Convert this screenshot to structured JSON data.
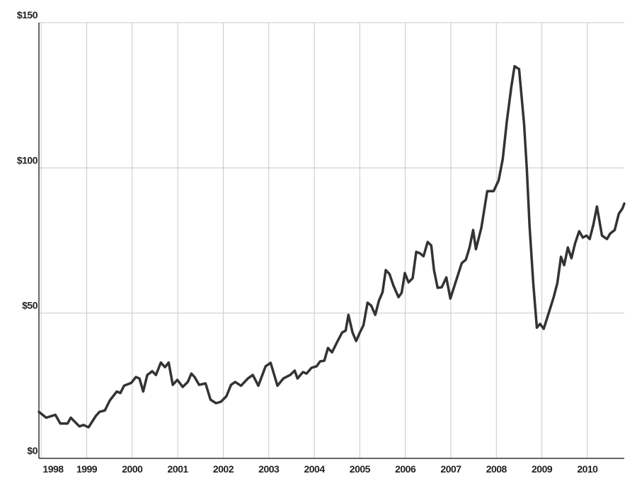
{
  "chart_data": {
    "type": "line",
    "color": "#333333",
    "grid": true,
    "x": [
      1997.95,
      1998.11,
      1998.31,
      1998.42,
      1998.58,
      1998.65,
      1998.84,
      1998.93,
      1999.04,
      1999.2,
      1999.28,
      1999.4,
      1999.51,
      1999.66,
      1999.74,
      1999.82,
      1999.98,
      2000.08,
      2000.16,
      2000.24,
      2000.33,
      2000.44,
      2000.52,
      2000.63,
      2000.72,
      2000.8,
      2000.89,
      2000.99,
      2001.11,
      2001.22,
      2001.3,
      2001.37,
      2001.47,
      2001.61,
      2001.72,
      2001.84,
      2001.95,
      2002.07,
      2002.17,
      2002.26,
      2002.39,
      2002.54,
      2002.65,
      2002.77,
      2002.93,
      2003.04,
      2003.19,
      2003.32,
      2003.47,
      2003.57,
      2003.63,
      2003.75,
      2003.83,
      2003.94,
      2004.05,
      2004.13,
      2004.22,
      2004.3,
      2004.39,
      2004.49,
      2004.61,
      2004.69,
      2004.75,
      2004.84,
      2004.92,
      2005.0,
      2005.08,
      2005.17,
      2005.25,
      2005.34,
      2005.42,
      2005.5,
      2005.57,
      2005.65,
      2005.74,
      2005.85,
      2005.92,
      2005.99,
      2006.07,
      2006.16,
      2006.24,
      2006.32,
      2006.4,
      2006.49,
      2006.57,
      2006.63,
      2006.71,
      2006.8,
      2006.9,
      2006.99,
      2007.1,
      2007.24,
      2007.33,
      2007.41,
      2007.49,
      2007.55,
      2007.67,
      2007.8,
      2007.94,
      2008.05,
      2008.14,
      2008.23,
      2008.33,
      2008.4,
      2008.5,
      2008.61,
      2008.67,
      2008.73,
      2008.81,
      2008.89,
      2008.96,
      2009.04,
      2009.15,
      2009.26,
      2009.34,
      2009.42,
      2009.49,
      2009.57,
      2009.65,
      2009.73,
      2009.82,
      2009.9,
      2009.98,
      2010.05,
      2010.13,
      2010.21,
      2010.32,
      2010.43,
      2010.5,
      2010.6,
      2010.69,
      2010.77,
      2010.81
    ],
    "values": [
      16,
      14,
      15,
      12,
      12,
      14,
      11,
      11.5,
      10.7,
      14.6,
      16,
      16.5,
      20,
      23,
      22.5,
      25,
      26,
      28,
      27.5,
      23,
      28.7,
      30,
      28.7,
      33,
      31.4,
      33,
      25.3,
      27,
      24.6,
      26.3,
      29.2,
      28,
      25.3,
      25.8,
      20.2,
      19,
      19.5,
      21.4,
      25.3,
      26.3,
      25,
      27.5,
      28.7,
      25,
      31.7,
      32.9,
      25,
      27.5,
      28.7,
      30.2,
      27.5,
      29.7,
      29.2,
      31.2,
      31.7,
      33.4,
      33.6,
      38,
      36.5,
      39.7,
      43.3,
      44,
      49.4,
      43.3,
      40.4,
      43.3,
      45.8,
      53.6,
      52.6,
      49.4,
      54.3,
      57.2,
      64.8,
      63.5,
      59.4,
      55.5,
      57,
      63.8,
      60.6,
      62,
      71.1,
      70.6,
      69.6,
      74.5,
      73.3,
      64.8,
      58.7,
      58.9,
      62.3,
      55,
      60.4,
      67.2,
      68.4,
      72.6,
      78.6,
      72,
      79.4,
      92,
      92,
      95.7,
      103,
      116,
      128,
      135,
      134,
      115,
      99.3,
      80,
      60.4,
      45,
      46.3,
      44.6,
      50,
      55.5,
      60.4,
      69.4,
      66.5,
      72.6,
      68.9,
      74,
      78.2,
      76,
      76.7,
      75.5,
      80.4,
      86.7,
      76.7,
      75.5,
      77.4,
      78.6,
      84.2,
      86,
      87.7
    ],
    "xlim": [
      1997.95,
      2010.81
    ],
    "xticks": [
      1998,
      1999,
      2000,
      2001,
      2002,
      2003,
      2004,
      2005,
      2006,
      2007,
      2008,
      2009,
      2010
    ],
    "ylim": [
      0,
      150
    ],
    "yticks": [
      {
        "value": 0,
        "label": "$0"
      },
      {
        "value": 50,
        "label": "$50"
      },
      {
        "value": 100,
        "label": "$100"
      },
      {
        "value": 150,
        "label": "$150"
      }
    ]
  }
}
